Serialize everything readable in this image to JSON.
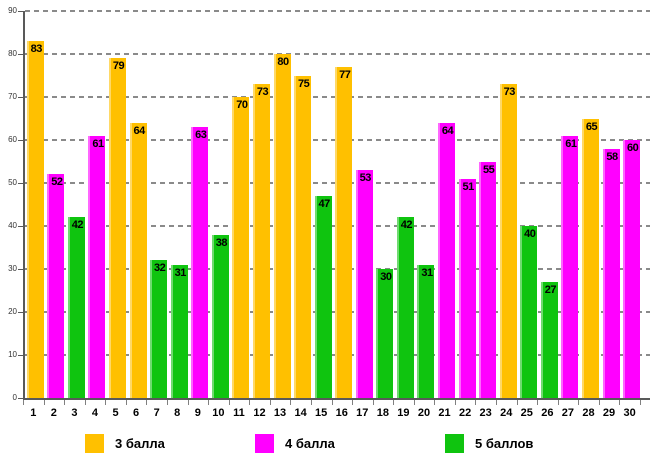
{
  "chart_data": {
    "type": "bar",
    "title": "",
    "xlabel": "",
    "ylabel": "",
    "ylim": [
      0,
      90
    ],
    "yticks": [
      0,
      10,
      20,
      30,
      40,
      50,
      60,
      70,
      80,
      90
    ],
    "grid": "dashed horizontal",
    "legend_position": "bottom",
    "categories": [
      "1",
      "2",
      "3",
      "4",
      "5",
      "6",
      "7",
      "8",
      "9",
      "10",
      "11",
      "12",
      "13",
      "14",
      "15",
      "16",
      "17",
      "18",
      "19",
      "20",
      "21",
      "22",
      "23",
      "24",
      "25",
      "26",
      "27",
      "28",
      "29",
      "30"
    ],
    "values": [
      83,
      52,
      42,
      61,
      79,
      64,
      32,
      31,
      63,
      38,
      70,
      73,
      80,
      75,
      47,
      77,
      53,
      30,
      42,
      31,
      64,
      51,
      55,
      73,
      40,
      27,
      61,
      65,
      58,
      60
    ],
    "series_per_bar": [
      "3 балла",
      "4 балла",
      "5 баллов",
      "4 балла",
      "3 балла",
      "3 балла",
      "5 баллов",
      "5 баллов",
      "4 балла",
      "5 баллов",
      "3 балла",
      "3 балла",
      "3 балла",
      "3 балла",
      "5 баллов",
      "3 балла",
      "4 балла",
      "5 баллов",
      "5 баллов",
      "5 баллов",
      "4 балла",
      "4 балла",
      "4 балла",
      "3 балла",
      "5 баллов",
      "5 баллов",
      "4 балла",
      "3 балла",
      "4 балла",
      "4 балла"
    ],
    "legend": [
      {
        "label": "3 балла",
        "color": "#FFC000"
      },
      {
        "label": "4 балла",
        "color": "#FF00FF"
      },
      {
        "label": "5 баллов",
        "color": "#0FC40F"
      }
    ],
    "colors": {
      "grid": "#8a8a8a",
      "axis": "#595959",
      "data_label": "#000000"
    }
  }
}
